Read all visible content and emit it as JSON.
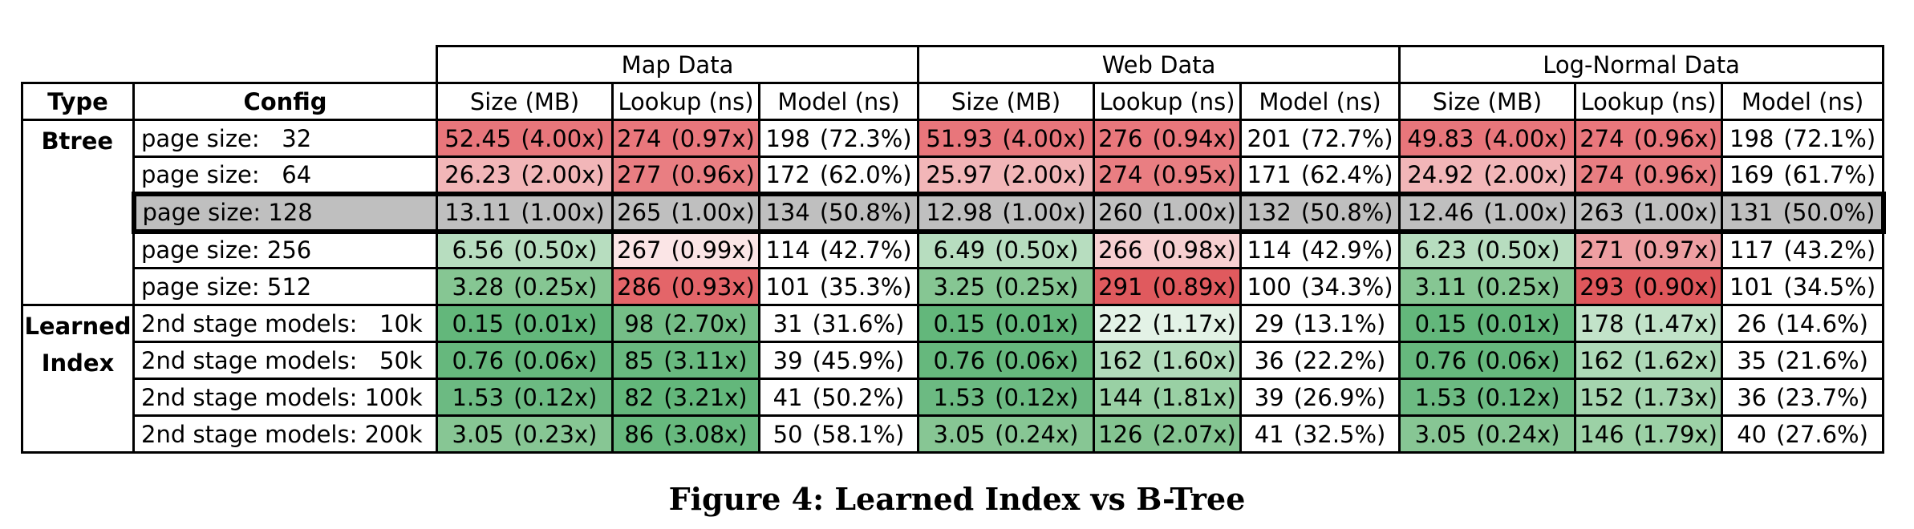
{
  "caption": "Figure 4: Learned Index vs B-Tree",
  "groups": [
    "Map Data",
    "Web Data",
    "Log-Normal Data"
  ],
  "headers": {
    "type": "Type",
    "config": "Config",
    "size": "Size (MB)",
    "lookup": "Lookup (ns)",
    "model": "Model (ns)"
  },
  "sections": [
    {
      "type_lines": [
        "Btree"
      ],
      "rows": [
        {
          "config": "page size:   32",
          "cells": [
            [
              "52.45",
              "(4.00x)"
            ],
            [
              "274",
              "(0.97x)"
            ],
            [
              "198",
              "(72.3%)"
            ],
            [
              "51.93",
              "(4.00x)"
            ],
            [
              "276",
              "(0.94x)"
            ],
            [
              "201",
              "(72.7%)"
            ],
            [
              "49.83",
              "(4.00x)"
            ],
            [
              "274",
              "(0.96x)"
            ],
            [
              "198",
              "(72.1%)"
            ]
          ]
        },
        {
          "config": "page size:   64",
          "cells": [
            [
              "26.23",
              "(2.00x)"
            ],
            [
              "277",
              "(0.96x)"
            ],
            [
              "172",
              "(62.0%)"
            ],
            [
              "25.97",
              "(2.00x)"
            ],
            [
              "274",
              "(0.95x)"
            ],
            [
              "171",
              "(62.4%)"
            ],
            [
              "24.92",
              "(2.00x)"
            ],
            [
              "274",
              "(0.96x)"
            ],
            [
              "169",
              "(61.7%)"
            ]
          ]
        },
        {
          "config": "page size: 128",
          "cells": [
            [
              "13.11",
              "(1.00x)"
            ],
            [
              "265",
              "(1.00x)"
            ],
            [
              "134",
              "(50.8%)"
            ],
            [
              "12.98",
              "(1.00x)"
            ],
            [
              "260",
              "(1.00x)"
            ],
            [
              "132",
              "(50.8%)"
            ],
            [
              "12.46",
              "(1.00x)"
            ],
            [
              "263",
              "(1.00x)"
            ],
            [
              "131",
              "(50.0%)"
            ]
          ]
        },
        {
          "config": "page size: 256",
          "cells": [
            [
              "6.56",
              "(0.50x)"
            ],
            [
              "267",
              "(0.99x)"
            ],
            [
              "114",
              "(42.7%)"
            ],
            [
              "6.49",
              "(0.50x)"
            ],
            [
              "266",
              "(0.98x)"
            ],
            [
              "114",
              "(42.9%)"
            ],
            [
              "6.23",
              "(0.50x)"
            ],
            [
              "271",
              "(0.97x)"
            ],
            [
              "117",
              "(43.2%)"
            ]
          ]
        },
        {
          "config": "page size: 512",
          "cells": [
            [
              "3.28",
              "(0.25x)"
            ],
            [
              "286",
              "(0.93x)"
            ],
            [
              "101",
              "(35.3%)"
            ],
            [
              "3.25",
              "(0.25x)"
            ],
            [
              "291",
              "(0.89x)"
            ],
            [
              "100",
              "(34.3%)"
            ],
            [
              "3.11",
              "(0.25x)"
            ],
            [
              "293",
              "(0.90x)"
            ],
            [
              "101",
              "(34.5%)"
            ]
          ]
        }
      ]
    },
    {
      "type_lines": [
        "Learned",
        "Index"
      ],
      "rows": [
        {
          "config": "2nd stage models:   10k",
          "cells": [
            [
              "0.15",
              "(0.01x)"
            ],
            [
              "98",
              "(2.70x)"
            ],
            [
              "31",
              "(31.6%)"
            ],
            [
              "0.15",
              "(0.01x)"
            ],
            [
              "222",
              "(1.17x)"
            ],
            [
              "29",
              "(13.1%)"
            ],
            [
              "0.15",
              "(0.01x)"
            ],
            [
              "178",
              "(1.47x)"
            ],
            [
              "26",
              "(14.6%)"
            ]
          ]
        },
        {
          "config": "2nd stage models:   50k",
          "cells": [
            [
              "0.76",
              "(0.06x)"
            ],
            [
              "85",
              "(3.11x)"
            ],
            [
              "39",
              "(45.9%)"
            ],
            [
              "0.76",
              "(0.06x)"
            ],
            [
              "162",
              "(1.60x)"
            ],
            [
              "36",
              "(22.2%)"
            ],
            [
              "0.76",
              "(0.06x)"
            ],
            [
              "162",
              "(1.62x)"
            ],
            [
              "35",
              "(21.6%)"
            ]
          ]
        },
        {
          "config": "2nd stage models: 100k",
          "cells": [
            [
              "1.53",
              "(0.12x)"
            ],
            [
              "82",
              "(3.21x)"
            ],
            [
              "41",
              "(50.2%)"
            ],
            [
              "1.53",
              "(0.12x)"
            ],
            [
              "144",
              "(1.81x)"
            ],
            [
              "39",
              "(26.9%)"
            ],
            [
              "1.53",
              "(0.12x)"
            ],
            [
              "152",
              "(1.73x)"
            ],
            [
              "36",
              "(23.7%)"
            ]
          ]
        },
        {
          "config": "2nd stage models: 200k",
          "cells": [
            [
              "3.05",
              "(0.23x)"
            ],
            [
              "86",
              "(3.08x)"
            ],
            [
              "50",
              "(58.1%)"
            ],
            [
              "3.05",
              "(0.24x)"
            ],
            [
              "126",
              "(2.07x)"
            ],
            [
              "41",
              "(32.5%)"
            ],
            [
              "3.05",
              "(0.24x)"
            ],
            [
              "146",
              "(1.79x)"
            ],
            [
              "40",
              "(27.6%)"
            ]
          ]
        }
      ]
    }
  ]
}
